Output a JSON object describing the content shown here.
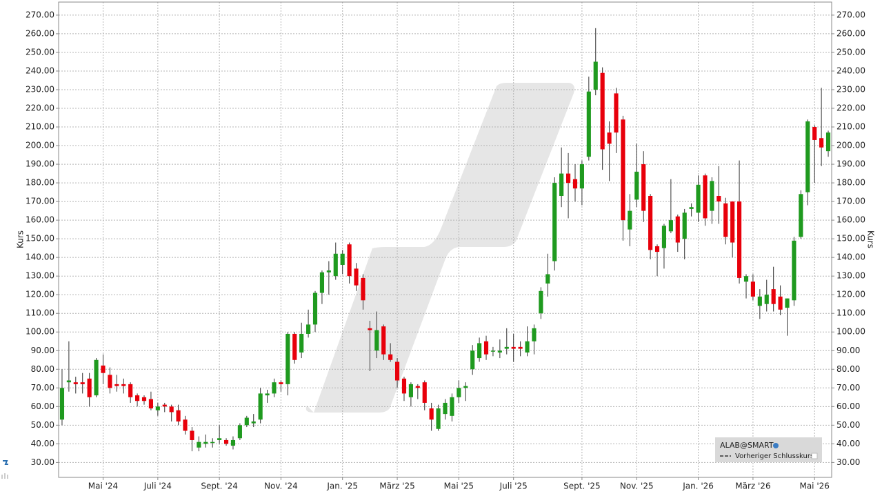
{
  "chart_data": {
    "type": "candlestick",
    "ylabel": "Kurs",
    "legend": [
      "ALAB@SMART",
      "Vorheriger Schlusskurs"
    ],
    "up_color": "#1f9a1f",
    "down_color": "#e8000b",
    "wick_color": "#333333",
    "grid": true,
    "ylim": [
      22,
      277
    ],
    "yticks": [
      {
        "value": 30,
        "label": "30.00"
      },
      {
        "value": 40,
        "label": "40.00"
      },
      {
        "value": 50,
        "label": "50.00"
      },
      {
        "value": 60,
        "label": "60.00"
      },
      {
        "value": 70,
        "label": "70.00"
      },
      {
        "value": 80,
        "label": "80.00"
      },
      {
        "value": 90,
        "label": "90.00"
      },
      {
        "value": 100,
        "label": "100.00"
      },
      {
        "value": 110,
        "label": "110.00"
      },
      {
        "value": 120,
        "label": "120.00"
      },
      {
        "value": 130,
        "label": "130.00"
      },
      {
        "value": 140,
        "label": "140.00"
      },
      {
        "value": 150,
        "label": "150.00"
      },
      {
        "value": 160,
        "label": "160.00"
      },
      {
        "value": 170,
        "label": "170.00"
      },
      {
        "value": 180,
        "label": "180.00"
      },
      {
        "value": 190,
        "label": "190.00"
      },
      {
        "value": 200,
        "label": "200.00"
      },
      {
        "value": 210,
        "label": "210.00"
      },
      {
        "value": 220,
        "label": "220.00"
      },
      {
        "value": 230,
        "label": "230.00"
      },
      {
        "value": 240,
        "label": "240.00"
      },
      {
        "value": 250,
        "label": "250.00"
      },
      {
        "value": 260,
        "label": "260.00"
      },
      {
        "value": 270,
        "label": "270.00"
      }
    ],
    "categories": [
      null,
      null,
      null,
      null,
      null,
      null,
      "Mai '24",
      null,
      null,
      null,
      null,
      null,
      null,
      null,
      "Juli '24",
      null,
      null,
      null,
      null,
      null,
      null,
      null,
      null,
      "Sept. '24",
      null,
      null,
      null,
      null,
      null,
      null,
      null,
      null,
      "Nov. '24",
      null,
      null,
      null,
      null,
      null,
      null,
      null,
      null,
      "Jan. '25",
      null,
      null,
      null,
      null,
      null,
      null,
      null,
      "März '25",
      null,
      null,
      null,
      null,
      null,
      null,
      null,
      null,
      "Mai '25",
      null,
      null,
      null,
      null,
      null,
      null,
      null,
      "Juli '25",
      null,
      null,
      null,
      null,
      null,
      null,
      null,
      null,
      null,
      "Sept. '25",
      null,
      null,
      null,
      null,
      null,
      null,
      null,
      "Nov. '25",
      null,
      null,
      null,
      null,
      null,
      null,
      null,
      null,
      "Jan. '26",
      null,
      null,
      null,
      null,
      null,
      null,
      null,
      "März '26",
      null,
      null,
      null,
      null,
      null,
      null,
      null,
      null,
      "Mai '26",
      null,
      null
    ],
    "open": [
      53,
      73,
      73,
      73,
      75,
      66,
      82,
      77,
      72,
      72,
      72,
      66,
      65,
      64,
      58,
      61,
      60,
      58,
      53,
      47,
      38,
      40,
      41,
      42,
      42,
      39,
      43,
      50,
      51,
      53,
      66,
      67,
      73,
      72,
      99,
      89,
      99,
      104,
      121,
      132,
      130,
      136,
      147,
      134,
      129,
      102,
      90,
      103,
      88,
      84,
      75,
      65,
      71,
      73,
      59,
      48,
      56,
      55,
      65,
      70,
      80,
      86,
      95,
      90,
      89,
      91,
      92,
      92,
      89,
      95,
      110,
      126,
      138,
      173,
      185,
      182,
      177,
      194,
      230,
      239,
      207,
      228,
      214,
      155,
      171,
      190,
      173,
      146,
      145,
      154,
      162,
      150,
      166,
      164,
      184,
      165,
      173,
      169,
      170,
      170,
      127,
      127,
      114,
      115,
      123,
      119,
      113,
      117,
      151,
      175,
      210,
      204,
      197
    ],
    "high": [
      80,
      95,
      76,
      78,
      78,
      86,
      88,
      81,
      77,
      75,
      73,
      67,
      66,
      68,
      62,
      62,
      61,
      61,
      55,
      49,
      44,
      45,
      43,
      50,
      43,
      44,
      51,
      55,
      56,
      70,
      69,
      75,
      74,
      100,
      100,
      105,
      112,
      122,
      133,
      138,
      148,
      144,
      148,
      137,
      131,
      106,
      111,
      104,
      94,
      86,
      76,
      73,
      72,
      74,
      62,
      61,
      64,
      67,
      74,
      73,
      93,
      97,
      98,
      92,
      96,
      102,
      99,
      95,
      103,
      104,
      124,
      142,
      183,
      199,
      196,
      190,
      192,
      237,
      263,
      242,
      213,
      231,
      216,
      174,
      201,
      197,
      174,
      147,
      158,
      182,
      163,
      166,
      169,
      184,
      185,
      183,
      189,
      172,
      170,
      192,
      131,
      131,
      123,
      128,
      135,
      125,
      118,
      151,
      176,
      214,
      211,
      231,
      208
    ],
    "low": [
      50,
      68,
      67,
      67,
      60,
      65,
      72,
      67,
      68,
      67,
      62,
      60,
      61,
      58,
      55,
      57,
      52,
      50,
      45,
      36,
      36,
      38,
      38,
      40,
      39,
      37,
      42,
      49,
      49,
      51,
      62,
      65,
      68,
      66,
      83,
      86,
      97,
      100,
      115,
      120,
      128,
      131,
      126,
      122,
      112,
      79,
      86,
      85,
      84,
      70,
      63,
      60,
      64,
      58,
      47,
      47,
      53,
      52,
      62,
      63,
      77,
      84,
      85,
      87,
      86,
      88,
      84,
      87,
      87,
      88,
      107,
      119,
      133,
      167,
      161,
      170,
      168,
      192,
      227,
      187,
      181,
      196,
      149,
      146,
      167,
      159,
      139,
      130,
      134,
      153,
      143,
      139,
      162,
      159,
      157,
      158,
      158,
      147,
      140,
      126,
      118,
      117,
      107,
      111,
      111,
      109,
      98,
      114,
      150,
      168,
      180,
      189,
      194
    ],
    "close": [
      70,
      74,
      72,
      72,
      65,
      85,
      78,
      70,
      71,
      71,
      65,
      63,
      63,
      59,
      60,
      60,
      57,
      52,
      47,
      42,
      41,
      41,
      41,
      43,
      40,
      42,
      50,
      54,
      52,
      67,
      67,
      73,
      72,
      99,
      85,
      99,
      104,
      121,
      132,
      133,
      142,
      142,
      130,
      125,
      117,
      101,
      101,
      88,
      85,
      74,
      67,
      72,
      70,
      62,
      53,
      59,
      62,
      65,
      70,
      71,
      90,
      94,
      88,
      90,
      90,
      92,
      91,
      91,
      95,
      102,
      122,
      131,
      180,
      185,
      180,
      177,
      190,
      229,
      245,
      198,
      201,
      207,
      160,
      165,
      186,
      165,
      144,
      143,
      157,
      160,
      148,
      164,
      167,
      179,
      161,
      181,
      170,
      151,
      148,
      129,
      130,
      119,
      119,
      120,
      115,
      112,
      118,
      149,
      174,
      213,
      203,
      199,
      207
    ]
  }
}
